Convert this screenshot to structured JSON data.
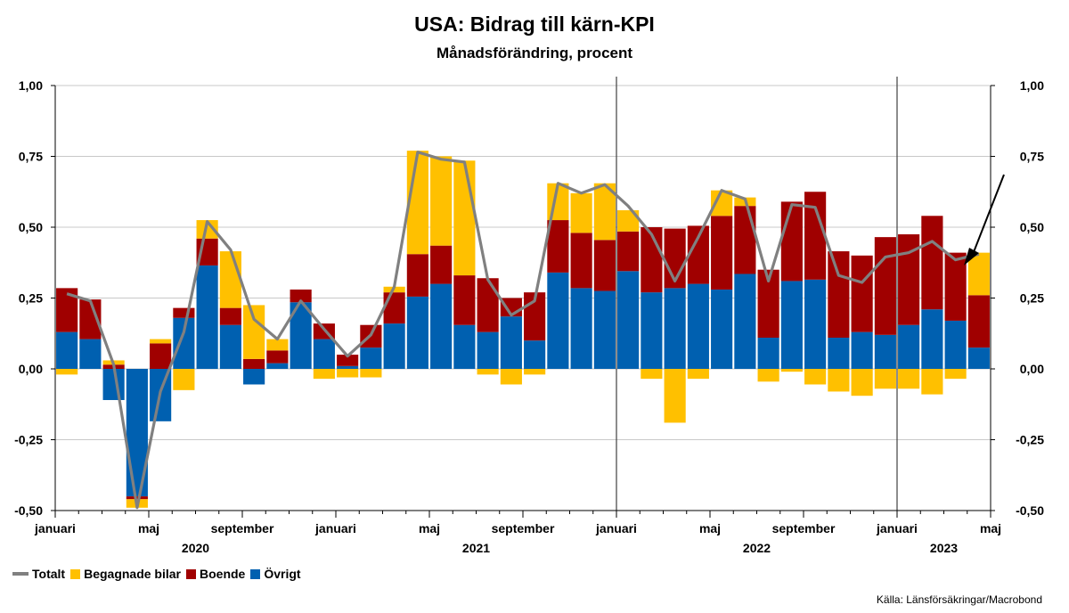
{
  "title": "USA: Bidrag till kärn-KPI",
  "subtitle": "Månadsförändring, procent",
  "source": "Källa: Länsförsäkringar/Macrobond",
  "colors": {
    "Totalt": "#808080",
    "Begagnade bilar": "#ffc000",
    "Boende": "#a00000",
    "Övrigt": "#0060b0"
  },
  "legend": [
    "Totalt",
    "Begagnade bilar",
    "Boende",
    "Övrigt"
  ],
  "chart_data": {
    "type": "bar",
    "stacked": true,
    "ylim": [
      -0.5,
      1.0
    ],
    "y_ticks": [
      "1,00",
      "0,75",
      "0,50",
      "0,25",
      "0,00",
      "-0,25",
      "-0,50"
    ],
    "x_tick_labels": [
      "januari",
      "maj",
      "september",
      "januari",
      "maj",
      "september",
      "januari",
      "maj",
      "september",
      "januari",
      "maj"
    ],
    "year_labels": [
      "2020",
      "2021",
      "2022",
      "2023"
    ],
    "categories": [
      "2020-01",
      "2020-02",
      "2020-03",
      "2020-04",
      "2020-05",
      "2020-06",
      "2020-07",
      "2020-08",
      "2020-09",
      "2020-10",
      "2020-11",
      "2020-12",
      "2021-01",
      "2021-02",
      "2021-03",
      "2021-04",
      "2021-05",
      "2021-06",
      "2021-07",
      "2021-08",
      "2021-09",
      "2021-10",
      "2021-11",
      "2021-12",
      "2022-01",
      "2022-02",
      "2022-03",
      "2022-04",
      "2022-05",
      "2022-06",
      "2022-07",
      "2022-08",
      "2022-09",
      "2022-10",
      "2022-11",
      "2022-12",
      "2023-01",
      "2023-02",
      "2023-03",
      "2023-04"
    ],
    "series": [
      {
        "name": "Övrigt",
        "values": [
          0.13,
          0.105,
          -0.11,
          -0.45,
          -0.185,
          0.18,
          0.365,
          0.155,
          -0.055,
          0.02,
          0.235,
          0.105,
          0.01,
          0.075,
          0.16,
          0.255,
          0.3,
          0.155,
          0.13,
          0.185,
          0.1,
          0.34,
          0.285,
          0.275,
          0.345,
          0.27,
          0.285,
          0.3,
          0.28,
          0.335,
          0.11,
          0.31,
          0.315,
          0.11,
          0.13,
          0.12,
          0.155,
          0.21,
          0.17,
          0.075
        ]
      },
      {
        "name": "Boende",
        "values": [
          0.155,
          0.14,
          0.015,
          -0.01,
          0.09,
          0.035,
          0.095,
          0.06,
          0.035,
          0.045,
          0.045,
          0.055,
          0.04,
          0.08,
          0.11,
          0.15,
          0.135,
          0.175,
          0.19,
          0.065,
          0.17,
          0.185,
          0.195,
          0.18,
          0.14,
          0.23,
          0.21,
          0.205,
          0.26,
          0.24,
          0.24,
          0.28,
          0.31,
          0.305,
          0.27,
          0.345,
          0.32,
          0.33,
          0.24,
          0.185
        ]
      },
      {
        "name": "Begagnade bilar",
        "values": [
          -0.02,
          0.0,
          0.015,
          -0.03,
          0.015,
          -0.075,
          0.065,
          0.2,
          0.19,
          0.04,
          0.0,
          -0.035,
          -0.03,
          -0.03,
          0.02,
          0.365,
          0.315,
          0.405,
          -0.02,
          -0.055,
          -0.02,
          0.13,
          0.14,
          0.2,
          0.075,
          -0.035,
          -0.19,
          -0.035,
          0.09,
          0.03,
          -0.045,
          -0.01,
          -0.055,
          -0.08,
          -0.095,
          -0.07,
          -0.07,
          -0.09,
          -0.035,
          0.15
        ]
      },
      {
        "name": "Totalt",
        "type": "line",
        "values": [
          0.265,
          0.24,
          0.015,
          -0.49,
          -0.08,
          0.13,
          0.52,
          0.42,
          0.175,
          0.105,
          0.24,
          0.14,
          0.045,
          0.12,
          0.29,
          0.765,
          0.74,
          0.73,
          0.315,
          0.19,
          0.24,
          0.655,
          0.62,
          0.65,
          0.575,
          0.475,
          0.31,
          0.465,
          0.63,
          0.6,
          0.31,
          0.58,
          0.57,
          0.33,
          0.305,
          0.395,
          0.41,
          0.45,
          0.385,
          0.405
        ]
      }
    ]
  }
}
